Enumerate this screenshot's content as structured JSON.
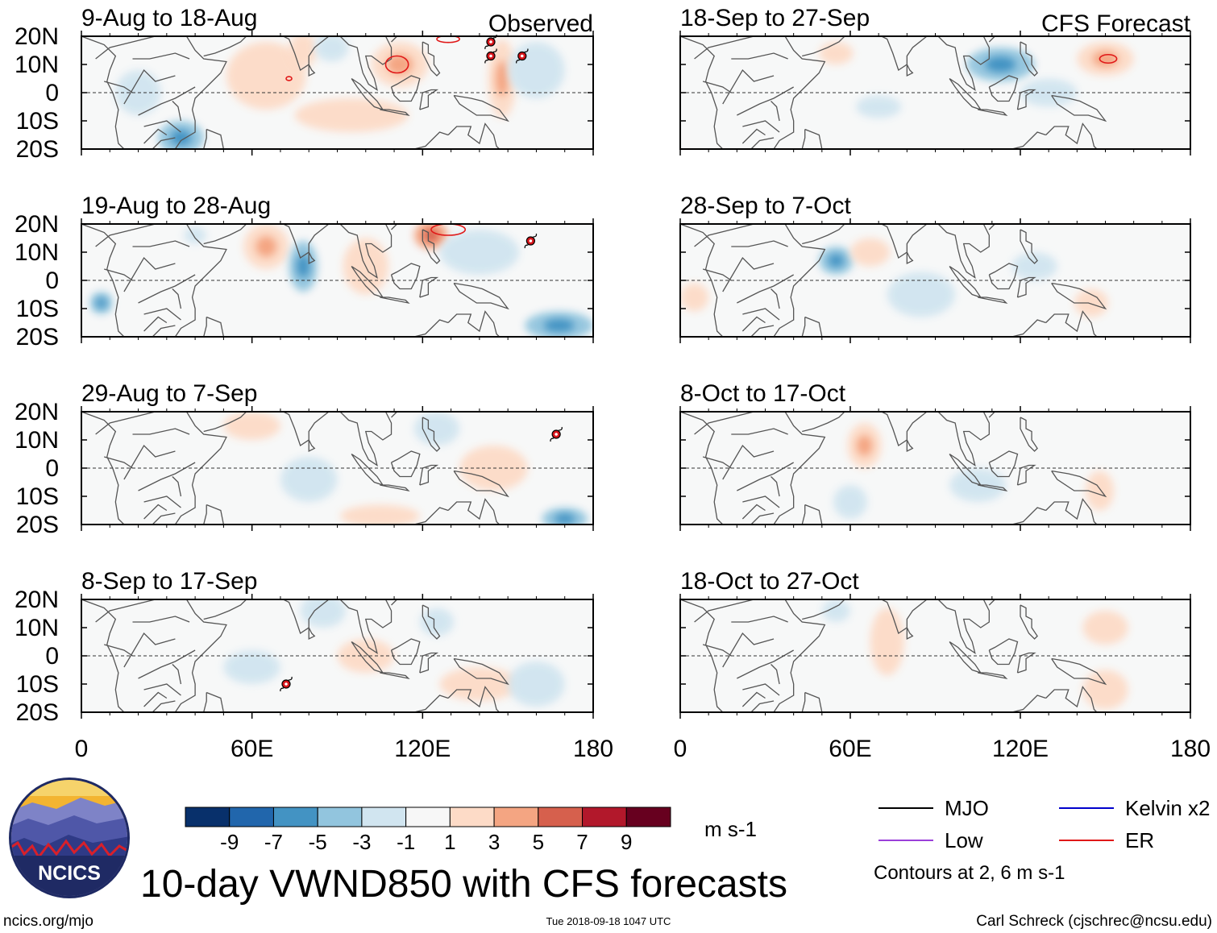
{
  "chart_data": {
    "type": "heatmap",
    "title": "10-day VWND850 with CFS forecasts",
    "variable": "VWND850",
    "units": "m s-1",
    "contours_note": "Contours at 2, 6 m s-1",
    "column_headers": {
      "left": "Observed",
      "right": "CFS Forecast"
    },
    "x_ticks": [
      "0",
      "60E",
      "120E",
      "180"
    ],
    "x_tick_values": [
      0,
      60,
      120,
      180
    ],
    "y_ticks": [
      "20N",
      "10N",
      "0",
      "10S",
      "20S"
    ],
    "y_tick_values": [
      20,
      10,
      0,
      -10,
      -20
    ],
    "xlim": [
      0,
      180
    ],
    "ylim": [
      -20,
      20
    ],
    "panels": [
      {
        "period": "9-Aug to 18-Aug",
        "kind": "observed",
        "anomalies": [
          {
            "lon": 65,
            "lat": 6,
            "v": 1.5,
            "rl": 14,
            "rt": 12
          },
          {
            "lon": 78,
            "lat": 15,
            "v": 1.5,
            "rl": 5,
            "rt": 6
          },
          {
            "lon": 88,
            "lat": 16,
            "v": -2.5,
            "rl": 6,
            "rt": 5
          },
          {
            "lon": 112,
            "lat": 10,
            "v": 3,
            "rl": 10,
            "rt": 8
          },
          {
            "lon": 148,
            "lat": 5,
            "v": 3,
            "rl": 5,
            "rt": 14
          },
          {
            "lon": 160,
            "lat": 8,
            "v": -1.5,
            "rl": 10,
            "rt": 10
          },
          {
            "lon": 35,
            "lat": -16,
            "v": -3,
            "rl": 8,
            "rt": 6
          },
          {
            "lon": 95,
            "lat": -8,
            "v": 1.5,
            "rl": 20,
            "rt": 6
          },
          {
            "lon": 20,
            "lat": 0,
            "v": -1.5,
            "rl": 8,
            "rt": 8
          }
        ],
        "er_contours": [
          {
            "lon": 111,
            "lat": 10,
            "rl": 4,
            "rt": 3
          },
          {
            "lon": 73,
            "lat": 5,
            "rl": 1,
            "rt": 0.7
          },
          {
            "lon": 129,
            "lat": 19,
            "rl": 4,
            "rt": 1.2
          }
        ],
        "cyclone_markers": [
          {
            "lon": 144,
            "lat": 18
          },
          {
            "lon": 144,
            "lat": 13
          },
          {
            "lon": 155,
            "lat": 13
          }
        ]
      },
      {
        "period": "19-Aug to 28-Aug",
        "kind": "observed",
        "anomalies": [
          {
            "lon": 65,
            "lat": 12,
            "v": 3,
            "rl": 8,
            "rt": 8
          },
          {
            "lon": 78,
            "lat": 5,
            "v": -3,
            "rl": 5,
            "rt": 9
          },
          {
            "lon": 100,
            "lat": 5,
            "v": 2,
            "rl": 8,
            "rt": 10
          },
          {
            "lon": 123,
            "lat": 16,
            "v": 4,
            "rl": 6,
            "rt": 5
          },
          {
            "lon": 168,
            "lat": -16,
            "v": -4,
            "rl": 12,
            "rt": 5
          },
          {
            "lon": 7,
            "lat": -8,
            "v": -3,
            "rl": 4,
            "rt": 4
          },
          {
            "lon": 140,
            "lat": 10,
            "v": -1.5,
            "rl": 14,
            "rt": 8
          },
          {
            "lon": 40,
            "lat": 16,
            "v": -2,
            "rl": 4,
            "rt": 3
          }
        ],
        "er_contours": [
          {
            "lon": 129,
            "lat": 18,
            "rl": 6,
            "rt": 2
          }
        ],
        "cyclone_markers": [
          {
            "lon": 158,
            "lat": 14
          }
        ]
      },
      {
        "period": "29-Aug to 7-Sep",
        "kind": "observed",
        "anomalies": [
          {
            "lon": 60,
            "lat": 15,
            "v": 1.5,
            "rl": 10,
            "rt": 5
          },
          {
            "lon": 80,
            "lat": -4,
            "v": -1.5,
            "rl": 10,
            "rt": 8
          },
          {
            "lon": 105,
            "lat": -17,
            "v": 2.5,
            "rl": 14,
            "rt": 4
          },
          {
            "lon": 170,
            "lat": -18,
            "v": -3,
            "rl": 8,
            "rt": 4
          },
          {
            "lon": 145,
            "lat": 0,
            "v": 1.5,
            "rl": 12,
            "rt": 8
          },
          {
            "lon": 125,
            "lat": 14,
            "v": -1.5,
            "rl": 8,
            "rt": 6
          }
        ],
        "er_contours": [],
        "cyclone_markers": [
          {
            "lon": 167,
            "lat": 12
          }
        ]
      },
      {
        "period": "8-Sep to 17-Sep",
        "kind": "observed",
        "anomalies": [
          {
            "lon": 60,
            "lat": -4,
            "v": -2,
            "rl": 10,
            "rt": 6
          },
          {
            "lon": 85,
            "lat": 16,
            "v": -2,
            "rl": 8,
            "rt": 6
          },
          {
            "lon": 100,
            "lat": 0,
            "v": 2,
            "rl": 10,
            "rt": 6
          },
          {
            "lon": 140,
            "lat": -10,
            "v": 2,
            "rl": 14,
            "rt": 6
          },
          {
            "lon": 125,
            "lat": 12,
            "v": -2,
            "rl": 6,
            "rt": 5
          },
          {
            "lon": 160,
            "lat": -10,
            "v": -1.5,
            "rl": 10,
            "rt": 8
          }
        ],
        "er_contours": [],
        "cyclone_markers": [
          {
            "lon": 72,
            "lat": -10
          }
        ]
      },
      {
        "period": "18-Sep to 27-Sep",
        "kind": "forecast",
        "anomalies": [
          {
            "lon": 113,
            "lat": 10,
            "v": -3,
            "rl": 12,
            "rt": 6
          },
          {
            "lon": 150,
            "lat": 12,
            "v": 3,
            "rl": 10,
            "rt": 6
          },
          {
            "lon": 55,
            "lat": 14,
            "v": 1.5,
            "rl": 6,
            "rt": 4
          },
          {
            "lon": 70,
            "lat": -5,
            "v": -1.5,
            "rl": 8,
            "rt": 4
          },
          {
            "lon": 130,
            "lat": 0,
            "v": -1.5,
            "rl": 10,
            "rt": 5
          }
        ],
        "er_contours": [
          {
            "lon": 151,
            "lat": 12,
            "rl": 3,
            "rt": 1.5
          }
        ],
        "cyclone_markers": []
      },
      {
        "period": "28-Sep to 7-Oct",
        "kind": "forecast",
        "anomalies": [
          {
            "lon": 55,
            "lat": 7,
            "v": -4,
            "rl": 6,
            "rt": 5
          },
          {
            "lon": 67,
            "lat": 10,
            "v": 2,
            "rl": 7,
            "rt": 5
          },
          {
            "lon": 85,
            "lat": -5,
            "v": -1.5,
            "rl": 12,
            "rt": 8
          },
          {
            "lon": 5,
            "lat": -6,
            "v": 1.5,
            "rl": 5,
            "rt": 5
          },
          {
            "lon": 145,
            "lat": -8,
            "v": 1.5,
            "rl": 6,
            "rt": 5
          },
          {
            "lon": 125,
            "lat": 5,
            "v": -1.5,
            "rl": 8,
            "rt": 5
          }
        ],
        "er_contours": [],
        "cyclone_markers": []
      },
      {
        "period": "8-Oct to 17-Oct",
        "kind": "forecast",
        "anomalies": [
          {
            "lon": 65,
            "lat": 8,
            "v": 3,
            "rl": 6,
            "rt": 8
          },
          {
            "lon": 60,
            "lat": -12,
            "v": -1.5,
            "rl": 6,
            "rt": 6
          },
          {
            "lon": 148,
            "lat": -8,
            "v": 1.5,
            "rl": 5,
            "rt": 7
          },
          {
            "lon": 105,
            "lat": -6,
            "v": -1.5,
            "rl": 10,
            "rt": 6
          }
        ],
        "er_contours": [],
        "cyclone_markers": []
      },
      {
        "period": "18-Oct to 27-Oct",
        "kind": "forecast",
        "anomalies": [
          {
            "lon": 73,
            "lat": 5,
            "v": 2,
            "rl": 6,
            "rt": 12
          },
          {
            "lon": 55,
            "lat": 16,
            "v": -1.5,
            "rl": 5,
            "rt": 4
          },
          {
            "lon": 150,
            "lat": -12,
            "v": 2.5,
            "rl": 8,
            "rt": 7
          },
          {
            "lon": 150,
            "lat": 10,
            "v": 1.5,
            "rl": 8,
            "rt": 6
          }
        ],
        "er_contours": [],
        "cyclone_markers": []
      }
    ],
    "colorbar": {
      "levels": [
        "-9",
        "-7",
        "-5",
        "-3",
        "-1",
        "1",
        "3",
        "5",
        "7",
        "9"
      ],
      "colors": [
        "#08306b",
        "#2166ac",
        "#4393c3",
        "#92c5de",
        "#d1e5f0",
        "#f7f7f7",
        "#fddbc7",
        "#f4a582",
        "#d6604d",
        "#b2182b",
        "#67001f"
      ]
    },
    "legend": [
      {
        "label": "MJO",
        "color": "#000000"
      },
      {
        "label": "Kelvin x2",
        "color": "#0000cc"
      },
      {
        "label": "Low",
        "color": "#9b3fd9"
      },
      {
        "label": "ER",
        "color": "#e01818"
      }
    ]
  },
  "logo": {
    "text": "NCICS"
  },
  "footer": {
    "url": "ncics.org/mjo",
    "timestamp": "Tue 2018-09-18 1047 UTC",
    "author": "Carl Schreck (cjschrec@ncsu.edu)"
  }
}
